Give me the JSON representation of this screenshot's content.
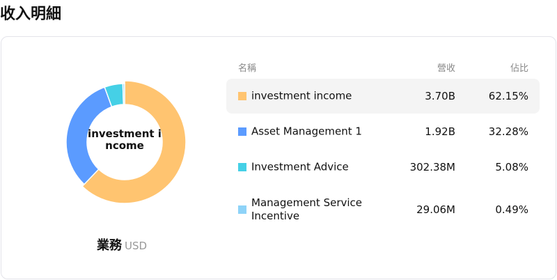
{
  "title": "收入明細",
  "chart_data": {
    "type": "pie",
    "center_label": "investment income",
    "caption": "業務",
    "unit": "USD",
    "columns": [
      "名稱",
      "營收",
      "佔比"
    ],
    "items": [
      {
        "name": "investment income",
        "value": "3.70B",
        "percent": "62.15%",
        "share": 62.15,
        "color": "#FFC470",
        "active": true
      },
      {
        "name": "Asset Management 1",
        "value": "1.92B",
        "percent": "32.28%",
        "share": 32.28,
        "color": "#5B9BFF"
      },
      {
        "name": "Investment Advice",
        "value": "302.38M",
        "percent": "5.08%",
        "share": 5.08,
        "color": "#45D0E6"
      },
      {
        "name": "Management Service Incentive",
        "value": "29.06M",
        "percent": "0.49%",
        "share": 0.49,
        "color": "#8ED3F8"
      }
    ]
  }
}
